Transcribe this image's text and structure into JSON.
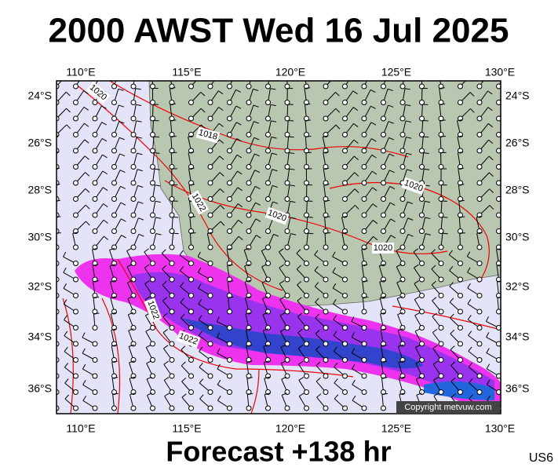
{
  "header": {
    "title": "2000 AWST Wed 16 Jul 2025"
  },
  "map": {
    "lon_labels": [
      "110°E",
      "115°E",
      "120°E",
      "125°E",
      "130°E"
    ],
    "lat_labels": [
      "24°S",
      "26°S",
      "28°S",
      "30°S",
      "32°S",
      "34°S",
      "36°S"
    ],
    "isobar_labels": [
      "1020",
      "1018",
      "1022",
      "1020",
      "1020",
      "1020",
      "1022",
      "1022"
    ],
    "copyright": "Copyright metvuw.com"
  },
  "footer": {
    "forecast": "Forecast +138 hr",
    "code": "US6"
  }
}
